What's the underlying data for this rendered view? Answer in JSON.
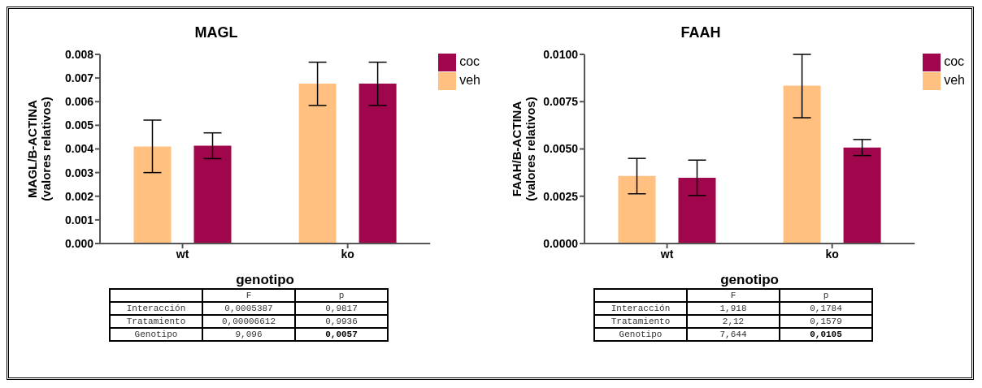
{
  "chart_data": [
    {
      "type": "bar",
      "title": "MAGL",
      "xlabel": "genotipo",
      "ylabel": "MAGL/B-ACTINA\n(valores relativos)",
      "categories": [
        "wt",
        "ko"
      ],
      "series": [
        {
          "name": "veh",
          "color": "#ffc080",
          "values": [
            0.0041,
            0.00676
          ],
          "errors": [
            [
              0.003,
              0.00522
            ],
            [
              0.00584,
              0.00767
            ]
          ]
        },
        {
          "name": "coc",
          "color": "#a0064b",
          "values": [
            0.00414,
            0.00676
          ],
          "errors": [
            [
              0.00359,
              0.00468
            ],
            [
              0.00584,
              0.00767
            ]
          ]
        }
      ],
      "ylim": [
        0,
        0.008
      ],
      "yticks": [
        {
          "value": 0,
          "label": "0.000"
        },
        {
          "value": 0.001,
          "label": "0.001"
        },
        {
          "value": 0.002,
          "label": "0.002"
        },
        {
          "value": 0.003,
          "label": "0.003"
        },
        {
          "value": 0.004,
          "label": "0.004"
        },
        {
          "value": 0.005,
          "label": "0.005"
        },
        {
          "value": 0.006,
          "label": "0.006"
        },
        {
          "value": 0.007,
          "label": "0.007"
        },
        {
          "value": 0.008,
          "label": "0.008"
        }
      ],
      "legend": "top right",
      "annotations": [
        "F",
        "p",
        "Interacción",
        "0,0005387",
        "0,9817",
        "Tratamiento",
        "0,00006612",
        "0,9936",
        "Genotipo",
        "9,096",
        "0,0057"
      ]
    },
    {
      "type": "bar",
      "title": "FAAH",
      "xlabel": "genotipo",
      "ylabel": "FAAH/B-ACTINA\n(valores relativos)",
      "categories": [
        "wt",
        "ko"
      ],
      "series": [
        {
          "name": "veh",
          "color": "#ffc080",
          "values": [
            0.00357,
            0.00835
          ],
          "errors": [
            [
              0.00263,
              0.0045
            ],
            [
              0.00665,
              0.01
            ]
          ]
        },
        {
          "name": "coc",
          "color": "#a0064b",
          "values": [
            0.00348,
            0.00507
          ],
          "errors": [
            [
              0.00254,
              0.00441
            ],
            [
              0.00465,
              0.0055
            ]
          ]
        }
      ],
      "ylim": [
        0,
        0.01
      ],
      "yticks": [
        {
          "value": 0,
          "label": "0.0000"
        },
        {
          "value": 0.0025,
          "label": "0.0025"
        },
        {
          "value": 0.005,
          "label": "0.0050"
        },
        {
          "value": 0.0075,
          "label": "0.0075"
        },
        {
          "value": 0.01,
          "label": "0.0100"
        }
      ],
      "legend": "top right",
      "annotations": [
        "F",
        "p",
        "Interacción",
        "1,918",
        "0,1784",
        "Tratamiento",
        "2,12",
        "0,1579",
        "Genotipo",
        "7,644",
        "0,0105"
      ]
    }
  ]
}
